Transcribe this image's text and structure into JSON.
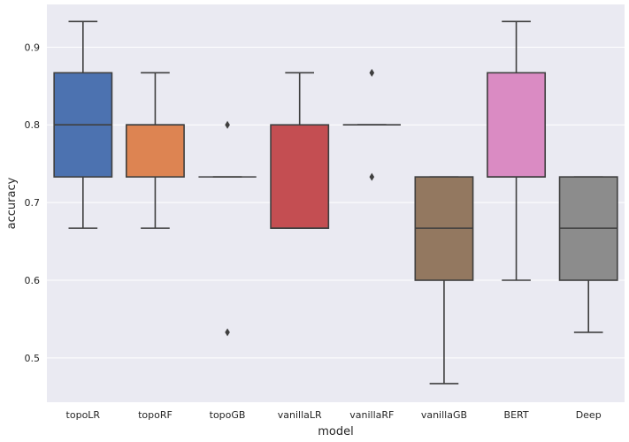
{
  "chart_data": {
    "type": "box",
    "title": "",
    "xlabel": "model",
    "ylabel": "accuracy",
    "ylim": [
      0.443,
      0.955
    ],
    "yticks": [
      0.5,
      0.6,
      0.7,
      0.8,
      0.9
    ],
    "ytick_labels": [
      "0.5",
      "0.6",
      "0.7",
      "0.8",
      "0.9"
    ],
    "grid": true,
    "colors": {
      "background": "#EAEAF2",
      "grid": "#FFFFFF",
      "line": "#3F3F3F"
    },
    "categories": [
      "topoLR",
      "topoRF",
      "topoGB",
      "vanillaLR",
      "vanillaRF",
      "vanillaGB",
      "BERT",
      "Deep"
    ],
    "boxes": [
      {
        "name": "topoLR",
        "color": "#4C72B0",
        "whisker_low": 0.667,
        "q1": 0.733,
        "median": 0.8,
        "q3": 0.867,
        "whisker_high": 0.933,
        "outliers": []
      },
      {
        "name": "topoRF",
        "color": "#DD8452",
        "whisker_low": 0.667,
        "q1": 0.733,
        "median": 0.8,
        "q3": 0.8,
        "whisker_high": 0.867,
        "outliers": []
      },
      {
        "name": "topoGB",
        "color": "#55A868",
        "whisker_low": 0.733,
        "q1": 0.733,
        "median": 0.733,
        "q3": 0.733,
        "whisker_high": 0.733,
        "outliers": [
          0.8,
          0.533
        ]
      },
      {
        "name": "vanillaLR",
        "color": "#C44E52",
        "whisker_low": 0.667,
        "q1": 0.667,
        "median": 0.667,
        "q3": 0.8,
        "whisker_high": 0.867,
        "outliers": []
      },
      {
        "name": "vanillaRF",
        "color": "#8172B3",
        "whisker_low": 0.8,
        "q1": 0.8,
        "median": 0.8,
        "q3": 0.8,
        "whisker_high": 0.8,
        "outliers": [
          0.867,
          0.733
        ]
      },
      {
        "name": "vanillaGB",
        "color": "#937860",
        "whisker_low": 0.467,
        "q1": 0.6,
        "median": 0.667,
        "q3": 0.733,
        "whisker_high": 0.733,
        "outliers": []
      },
      {
        "name": "BERT",
        "color": "#DA8BC3",
        "whisker_low": 0.6,
        "q1": 0.733,
        "median": 0.733,
        "q3": 0.867,
        "whisker_high": 0.933,
        "outliers": []
      },
      {
        "name": "Deep",
        "color": "#8C8C8C",
        "whisker_low": 0.533,
        "q1": 0.6,
        "median": 0.667,
        "q3": 0.733,
        "whisker_high": 0.733,
        "outliers": []
      }
    ]
  }
}
